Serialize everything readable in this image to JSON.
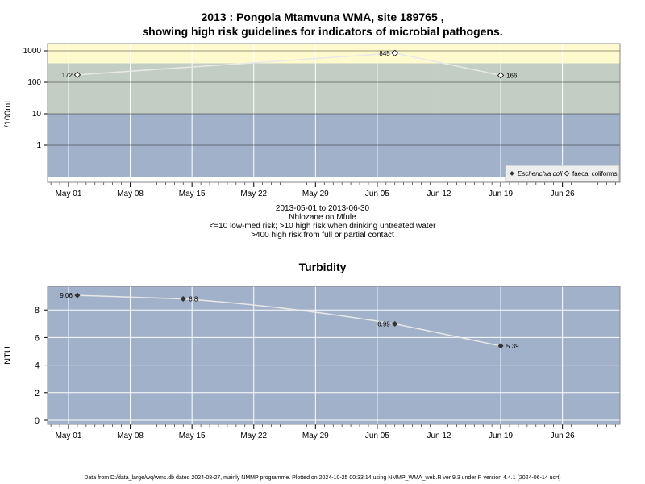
{
  "chart_data": [
    {
      "type": "scatter",
      "title_line1": "2013 : Pongola Mtamvuna WMA, site 189765 ,",
      "title_line2": "showing high risk guidelines for indicators of microbial pathogens.",
      "ylabel": "/100mL",
      "yscale": "log",
      "y_ticks": [
        "1",
        "10",
        "100",
        "1000"
      ],
      "x_ticks": [
        "May 01",
        "May 08",
        "May 15",
        "May 22",
        "May 29",
        "Jun 05",
        "Jun 12",
        "Jun 19",
        "Jun 26"
      ],
      "guideline_bands": [
        {
          "from": 0.1,
          "to": 10,
          "color": "#a1b1c9"
        },
        {
          "from": 10,
          "to": 400,
          "color": "#c2cdc3"
        },
        {
          "from": 400,
          "to": 2000,
          "color": "#fffacd"
        }
      ],
      "series": [
        {
          "name": "Escherichia coli",
          "marker": "filled-diamond",
          "points": []
        },
        {
          "name": "faecal coliforms",
          "marker": "open-diamond",
          "points": [
            {
              "x": "2013-05-02",
              "y": 172,
              "label": "172"
            },
            {
              "x": "2013-06-07",
              "y": 845,
              "label": "845"
            },
            {
              "x": "2013-06-19",
              "y": 166,
              "label": "166"
            }
          ]
        }
      ],
      "legend_position": "bottom-right",
      "notes": [
        "2013-05-01 to 2013-06-30",
        "Nhlozane on Mfule",
        "<=10 low-med risk; >10 high risk when drinking untreated water",
        ">400 high risk from full or partial contact"
      ]
    },
    {
      "type": "line",
      "title": "Turbidity",
      "ylabel": "NTU",
      "y_ticks": [
        "0",
        "2",
        "4",
        "6",
        "8"
      ],
      "ylim": [
        -0.3,
        9.5
      ],
      "x_ticks": [
        "May 01",
        "May 08",
        "May 15",
        "May 22",
        "May 29",
        "Jun 05",
        "Jun 12",
        "Jun 19",
        "Jun 26"
      ],
      "series": [
        {
          "name": "Turbidity",
          "points": [
            {
              "x": "2013-05-02",
              "y": 9.06,
              "label": "9.06"
            },
            {
              "x": "2013-05-14",
              "y": 8.8,
              "label": "8.8"
            },
            {
              "x": "2013-06-07",
              "y": 6.99,
              "label": "6.99"
            },
            {
              "x": "2013-06-19",
              "y": 5.39,
              "label": "5.39"
            }
          ]
        }
      ]
    }
  ],
  "footer": "Data from D:/data_large/wq/wms.db dated 2024-08-27, mainly NMMP programme. Plotted on 2024-10-25 00:33:14 using NMMP_WMA_web.R ver 9.3 under R version 4.4.1 (2024-06-14 ucrt)",
  "colors": {
    "plot_bg": "#a1b1c9",
    "grid": "#ffffff",
    "line": "#e8e8e8",
    "marker_fill": "#333333"
  }
}
